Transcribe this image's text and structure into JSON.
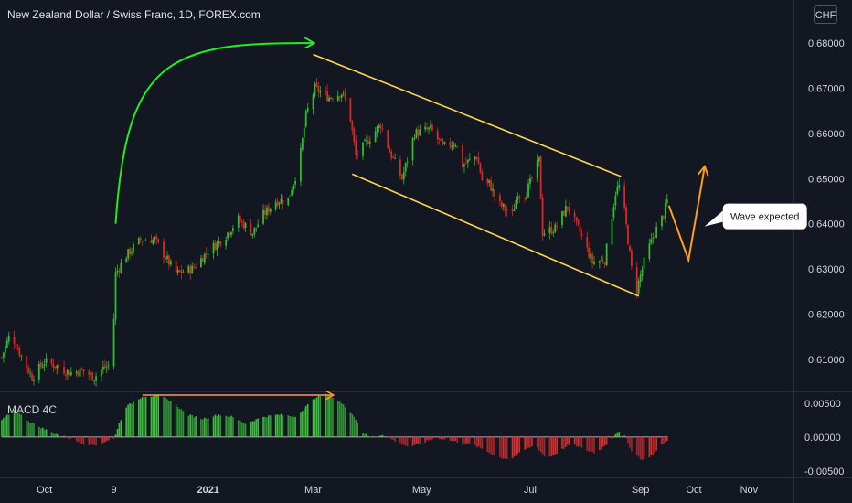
{
  "header": {
    "title": "New Zealand Dollar / Swiss Franc, 1D, FOREX.com",
    "currency": "CHF"
  },
  "colors": {
    "background": "#131722",
    "up": "#26a69a",
    "candle_up": "#2ebd2e",
    "candle_down": "#e02424",
    "channel": "#ffd54f",
    "trend_arrow": "#1ef01e",
    "projection": "#ff9f1c",
    "macd_up": "#3dbd3d",
    "macd_down": "#d32f2f"
  },
  "chart_data": [
    {
      "type": "candlestick",
      "name": "price",
      "ylim": [
        0.6035,
        0.6855
      ],
      "ytick_labels": [
        "0.68000",
        "0.67000",
        "0.66000",
        "0.65000",
        "0.64000",
        "0.63000",
        "0.62000",
        "0.61000"
      ],
      "yticks": [
        0.68,
        0.67,
        0.66,
        0.65,
        0.64,
        0.63,
        0.62,
        0.61
      ],
      "xtick_labels": [
        "Oct",
        "9",
        "2021",
        "Mar",
        "May",
        "Jul",
        "Sep",
        "Oct",
        "Nov"
      ],
      "xtick_dates": [
        "2020-10-01",
        "2020-11-09",
        "2021-01-01",
        "2021-03-01",
        "2021-05-01",
        "2021-07-01",
        "2021-09-01",
        "2021-10-01",
        "2021-11-01"
      ],
      "x_range": [
        "2020-09-06",
        "2021-11-26"
      ],
      "close_path": [
        [
          "2020-09-07",
          0.6105
        ],
        [
          "2020-09-12",
          0.616
        ],
        [
          "2020-09-17",
          0.6115
        ],
        [
          "2020-09-24",
          0.606
        ],
        [
          "2020-10-01",
          0.6095
        ],
        [
          "2020-10-08",
          0.6085
        ],
        [
          "2020-10-15",
          0.607
        ],
        [
          "2020-10-22",
          0.6075
        ],
        [
          "2020-10-29",
          0.606
        ],
        [
          "2020-11-03",
          0.608
        ],
        [
          "2020-11-08",
          0.609
        ],
        [
          "2020-11-10",
          0.629
        ],
        [
          "2020-11-16",
          0.633
        ],
        [
          "2020-11-24",
          0.6365
        ],
        [
          "2020-12-02",
          0.6365
        ],
        [
          "2020-12-09",
          0.632
        ],
        [
          "2020-12-14",
          0.629
        ],
        [
          "2020-12-23",
          0.63
        ],
        [
          "2021-01-01",
          0.634
        ],
        [
          "2021-01-10",
          0.637
        ],
        [
          "2021-01-18",
          0.641
        ],
        [
          "2021-01-26",
          0.638
        ],
        [
          "2021-02-01",
          0.642
        ],
        [
          "2021-02-08",
          0.645
        ],
        [
          "2021-02-15",
          0.6455
        ],
        [
          "2021-02-21",
          0.653
        ],
        [
          "2021-02-25",
          0.664
        ],
        [
          "2021-03-02",
          0.67
        ],
        [
          "2021-03-10",
          0.668
        ],
        [
          "2021-03-17",
          0.669
        ],
        [
          "2021-03-21",
          0.666
        ],
        [
          "2021-03-25",
          0.655
        ],
        [
          "2021-04-02",
          0.659
        ],
        [
          "2021-04-08",
          0.662
        ],
        [
          "2021-04-13",
          0.656
        ],
        [
          "2021-04-20",
          0.65
        ],
        [
          "2021-04-27",
          0.66
        ],
        [
          "2021-05-06",
          0.661
        ],
        [
          "2021-05-13",
          0.657
        ],
        [
          "2021-05-20",
          0.658
        ],
        [
          "2021-05-24",
          0.653
        ],
        [
          "2021-06-01",
          0.655
        ],
        [
          "2021-06-05",
          0.648
        ],
        [
          "2021-06-08",
          0.649
        ],
        [
          "2021-06-13",
          0.6445
        ],
        [
          "2021-06-21",
          0.642
        ],
        [
          "2021-06-24",
          0.647
        ],
        [
          "2021-06-27",
          0.6455
        ],
        [
          "2021-07-01",
          0.649
        ],
        [
          "2021-07-06",
          0.654
        ],
        [
          "2021-07-08",
          0.638
        ],
        [
          "2021-07-15",
          0.639
        ],
        [
          "2021-07-22",
          0.644
        ],
        [
          "2021-07-29",
          0.638
        ],
        [
          "2021-08-05",
          0.6315
        ],
        [
          "2021-08-12",
          0.632
        ],
        [
          "2021-08-18",
          0.647
        ],
        [
          "2021-08-21",
          0.649
        ],
        [
          "2021-08-27",
          0.63
        ],
        [
          "2021-08-30",
          0.6255
        ],
        [
          "2021-09-04",
          0.633
        ],
        [
          "2021-09-09",
          0.638
        ],
        [
          "2021-09-14",
          0.642
        ],
        [
          "2021-09-16",
          0.645
        ]
      ],
      "annotations": {
        "trend_arrow": {
          "from": [
            "2020-11-10",
            0.64
          ],
          "to": [
            "2021-03-01",
            0.68
          ]
        },
        "channel_upper": {
          "from": [
            "2021-03-01",
            0.6775
          ],
          "to": [
            "2021-08-21",
            0.6505
          ]
        },
        "channel_lower": {
          "from": [
            "2021-03-23",
            0.651
          ],
          "to": [
            "2021-08-31",
            0.624
          ]
        },
        "projection": [
          [
            "2021-09-17",
            0.644
          ],
          [
            "2021-09-28",
            0.632
          ],
          [
            "2021-10-07",
            0.6525
          ]
        ],
        "callout_anchor": [
          "2021-10-07",
          0.639
        ],
        "callout_text": "Wave expected"
      }
    },
    {
      "type": "histogram",
      "name": "MACD 4C",
      "ylim": [
        -0.0057,
        0.0062
      ],
      "yticks": [
        0.005,
        0.0,
        -0.005
      ],
      "ytick_labels": [
        "0.00500",
        "0.00000",
        "-0.00500"
      ],
      "path": [
        [
          "2020-09-07",
          0.0025
        ],
        [
          "2020-09-14",
          0.004
        ],
        [
          "2020-09-24",
          0.002
        ],
        [
          "2020-10-05",
          0.0007
        ],
        [
          "2020-10-16",
          -0.0003
        ],
        [
          "2020-10-23",
          -0.001
        ],
        [
          "2020-10-30",
          -0.0012
        ],
        [
          "2020-11-05",
          -0.0006
        ],
        [
          "2020-11-09",
          -0.0003
        ],
        [
          "2020-11-12",
          0.002
        ],
        [
          "2020-11-16",
          0.0045
        ],
        [
          "2020-11-25",
          0.006
        ],
        [
          "2020-12-05",
          0.0061
        ],
        [
          "2020-12-13",
          0.005
        ],
        [
          "2020-12-20",
          0.0033
        ],
        [
          "2020-12-29",
          0.0027
        ],
        [
          "2021-01-07",
          0.0033
        ],
        [
          "2021-01-14",
          0.003
        ],
        [
          "2021-01-22",
          0.002
        ],
        [
          "2021-02-01",
          0.003
        ],
        [
          "2021-02-10",
          0.0033
        ],
        [
          "2021-02-19",
          0.003
        ],
        [
          "2021-02-25",
          0.0045
        ],
        [
          "2021-03-03",
          0.006
        ],
        [
          "2021-03-09",
          0.0063
        ],
        [
          "2021-03-16",
          0.0052
        ],
        [
          "2021-03-23",
          0.0035
        ],
        [
          "2021-03-29",
          0.0007
        ],
        [
          "2021-04-03",
          -0.0002
        ],
        [
          "2021-04-09",
          0.0004
        ],
        [
          "2021-04-16",
          -0.0006
        ],
        [
          "2021-04-24",
          -0.0015
        ],
        [
          "2021-05-02",
          -0.0008
        ],
        [
          "2021-05-09",
          -0.0001
        ],
        [
          "2021-05-16",
          -0.0005
        ],
        [
          "2021-05-23",
          -0.0008
        ],
        [
          "2021-05-30",
          -0.0012
        ],
        [
          "2021-06-06",
          -0.002
        ],
        [
          "2021-06-13",
          -0.003
        ],
        [
          "2021-06-20",
          -0.0033
        ],
        [
          "2021-06-27",
          -0.002
        ],
        [
          "2021-07-04",
          -0.0012
        ],
        [
          "2021-07-10",
          -0.0032
        ],
        [
          "2021-07-17",
          -0.0022
        ],
        [
          "2021-07-24",
          -0.001
        ],
        [
          "2021-07-31",
          -0.0018
        ],
        [
          "2021-08-07",
          -0.0024
        ],
        [
          "2021-08-14",
          -0.0008
        ],
        [
          "2021-08-19",
          0.0008
        ],
        [
          "2021-08-23",
          0.0002
        ],
        [
          "2021-08-27",
          -0.002
        ],
        [
          "2021-09-02",
          -0.0034
        ],
        [
          "2021-09-08",
          -0.0026
        ],
        [
          "2021-09-13",
          -0.0012
        ],
        [
          "2021-09-16",
          -0.0006
        ]
      ],
      "annotations": {
        "divergence_line": {
          "from": [
            "2020-11-25",
            0.0062
          ],
          "to": [
            "2021-03-12",
            0.0062
          ]
        }
      }
    }
  ]
}
